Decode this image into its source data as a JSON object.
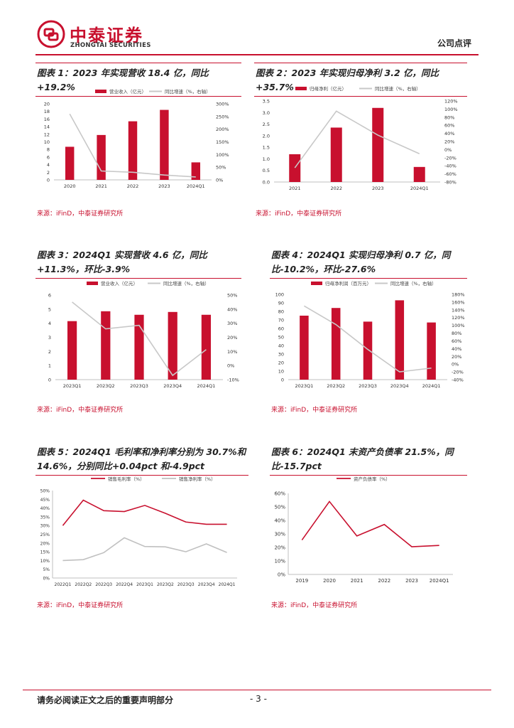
{
  "header": {
    "brand_cn": "中泰证券",
    "brand_en": "ZHONGTAI SECURITIES",
    "doc_type": "公司点评",
    "brand_color": "#c8102e"
  },
  "footer": {
    "disclaimer": "请务必阅读正文之后的重要声明部分",
    "page": "- 3 -"
  },
  "chart_data": [
    {
      "id": "c1",
      "type": "bar+line",
      "title": "图表 1：2023 年实现营收 18.4 亿，同比+19.2%",
      "legend_bar": "营业收入（亿元）",
      "legend_line": "同比增速（%，右轴）",
      "categories": [
        "2020",
        "2021",
        "2022",
        "2023",
        "2024Q1"
      ],
      "bar_values": [
        8.7,
        11.8,
        15.4,
        18.4,
        4.6
      ],
      "line_values": [
        260,
        35,
        30,
        19.2,
        11.3
      ],
      "left_ticks": [
        "0",
        "2",
        "4",
        "6",
        "8",
        "10",
        "12",
        "14",
        "16",
        "18",
        "20"
      ],
      "right_ticks": [
        "0%",
        "50%",
        "100%",
        "150%",
        "200%",
        "250%",
        "300%"
      ],
      "ylim_left": [
        0,
        20
      ],
      "ylim_right": [
        0,
        300
      ],
      "source": "来源：iFinD，中泰证券研究所"
    },
    {
      "id": "c2",
      "type": "bar+line",
      "title": "图表 2：2023 年实现归母净利 3.2 亿，同比+35.7%",
      "legend_bar": "归母净利（亿元）",
      "legend_line": "同比增速（%，右轴）",
      "categories": [
        "2021",
        "2022",
        "2023",
        "2024Q1"
      ],
      "bar_values": [
        1.2,
        2.35,
        3.2,
        0.65
      ],
      "line_values": [
        -45,
        95,
        35.7,
        -10.2
      ],
      "left_ticks": [
        "0.0",
        "0.5",
        "1.0",
        "1.5",
        "2.0",
        "2.5",
        "3.0",
        "3.5"
      ],
      "right_ticks": [
        "-80%",
        "-60%",
        "-40%",
        "-20%",
        "0%",
        "20%",
        "40%",
        "60%",
        "80%",
        "100%",
        "120%"
      ],
      "ylim_left": [
        0,
        3.5
      ],
      "ylim_right": [
        -80,
        120
      ],
      "source": "来源：iFinD，中泰证券研究所"
    },
    {
      "id": "c3",
      "type": "bar+line",
      "title": "图表 3：2024Q1 实现营收 4.6 亿，同比+11.3%，环比-3.9%",
      "legend_bar": "营业收入（亿元）",
      "legend_line": "同比增速（%，右轴）",
      "categories": [
        "2023Q1",
        "2023Q2",
        "2023Q3",
        "2023Q4",
        "2024Q1"
      ],
      "bar_values": [
        4.15,
        4.85,
        4.6,
        4.8,
        4.6
      ],
      "line_values": [
        45,
        26,
        28.5,
        -7,
        11.3
      ],
      "left_ticks": [
        "0",
        "1",
        "2",
        "3",
        "4",
        "5",
        "6"
      ],
      "right_ticks": [
        "-10%",
        "0%",
        "10%",
        "20%",
        "30%",
        "40%",
        "50%"
      ],
      "ylim_left": [
        0,
        6
      ],
      "ylim_right": [
        -10,
        50
      ],
      "source": "来源：iFinD，中泰证券研究所"
    },
    {
      "id": "c4",
      "type": "bar+line",
      "title": "图表 4：2024Q1 实现归母净利 0.7 亿，同比-10.2%，环比-27.6%",
      "legend_bar": "归母净利润（百万元）",
      "legend_line": "同比增速（%，右轴）",
      "categories": [
        "2023Q1",
        "2023Q2",
        "2023Q3",
        "2023Q4",
        "2024Q1"
      ],
      "bar_values": [
        75,
        84,
        68,
        93,
        67
      ],
      "line_values": [
        150,
        102,
        38,
        -20,
        -10.2
      ],
      "left_ticks": [
        "0",
        "10",
        "20",
        "30",
        "40",
        "50",
        "60",
        "70",
        "80",
        "90",
        "100"
      ],
      "right_ticks": [
        "-40%",
        "-20%",
        "0%",
        "20%",
        "40%",
        "60%",
        "80%",
        "100%",
        "120%",
        "140%",
        "160%",
        "180%"
      ],
      "ylim_left": [
        0,
        100
      ],
      "ylim_right": [
        -40,
        180
      ],
      "source": "来源：iFinD，中泰证券研究所"
    },
    {
      "id": "c5",
      "type": "line",
      "title": "图表 5：2024Q1 毛利率和净利率分别为 30.7%和 14.6%，分别同比+0.04pct 和-4.9pct",
      "series": [
        {
          "name": "销售毛利率（%）",
          "color": "#c8102e",
          "values": [
            30,
            44.5,
            38.5,
            38,
            41.5,
            37,
            32,
            30.7,
            30.7
          ]
        },
        {
          "name": "销售净利率（%）",
          "color": "#c0c0c0",
          "values": [
            10,
            10.5,
            14.5,
            23,
            18,
            17.8,
            15,
            19.5,
            14.6
          ]
        }
      ],
      "categories": [
        "2022Q1",
        "2022Q2",
        "2022Q3",
        "2022Q4",
        "2023Q1",
        "2023Q2",
        "2023Q3",
        "2023Q4",
        "2024Q1"
      ],
      "left_ticks": [
        "0%",
        "5%",
        "10%",
        "15%",
        "20%",
        "25%",
        "30%",
        "35%",
        "40%",
        "45%",
        "50%"
      ],
      "ylim": [
        0,
        50
      ],
      "source": "来源：iFinD，中泰证券研究所"
    },
    {
      "id": "c6",
      "type": "line",
      "title": "图表 6：2024Q1 末资产负债率 21.5%，同比-15.7pct",
      "series": [
        {
          "name": "资产负债率（%）",
          "color": "#c8102e",
          "values": [
            25.5,
            54,
            28.5,
            37,
            20.5,
            21.5
          ]
        }
      ],
      "categories": [
        "2019",
        "2020",
        "2021",
        "2022",
        "2023",
        "2024Q1"
      ],
      "left_ticks": [
        "0%",
        "10%",
        "20%",
        "30%",
        "40%",
        "50%",
        "60%"
      ],
      "ylim": [
        0,
        60
      ],
      "source": "来源：iFinD，中泰证券研究所"
    }
  ]
}
